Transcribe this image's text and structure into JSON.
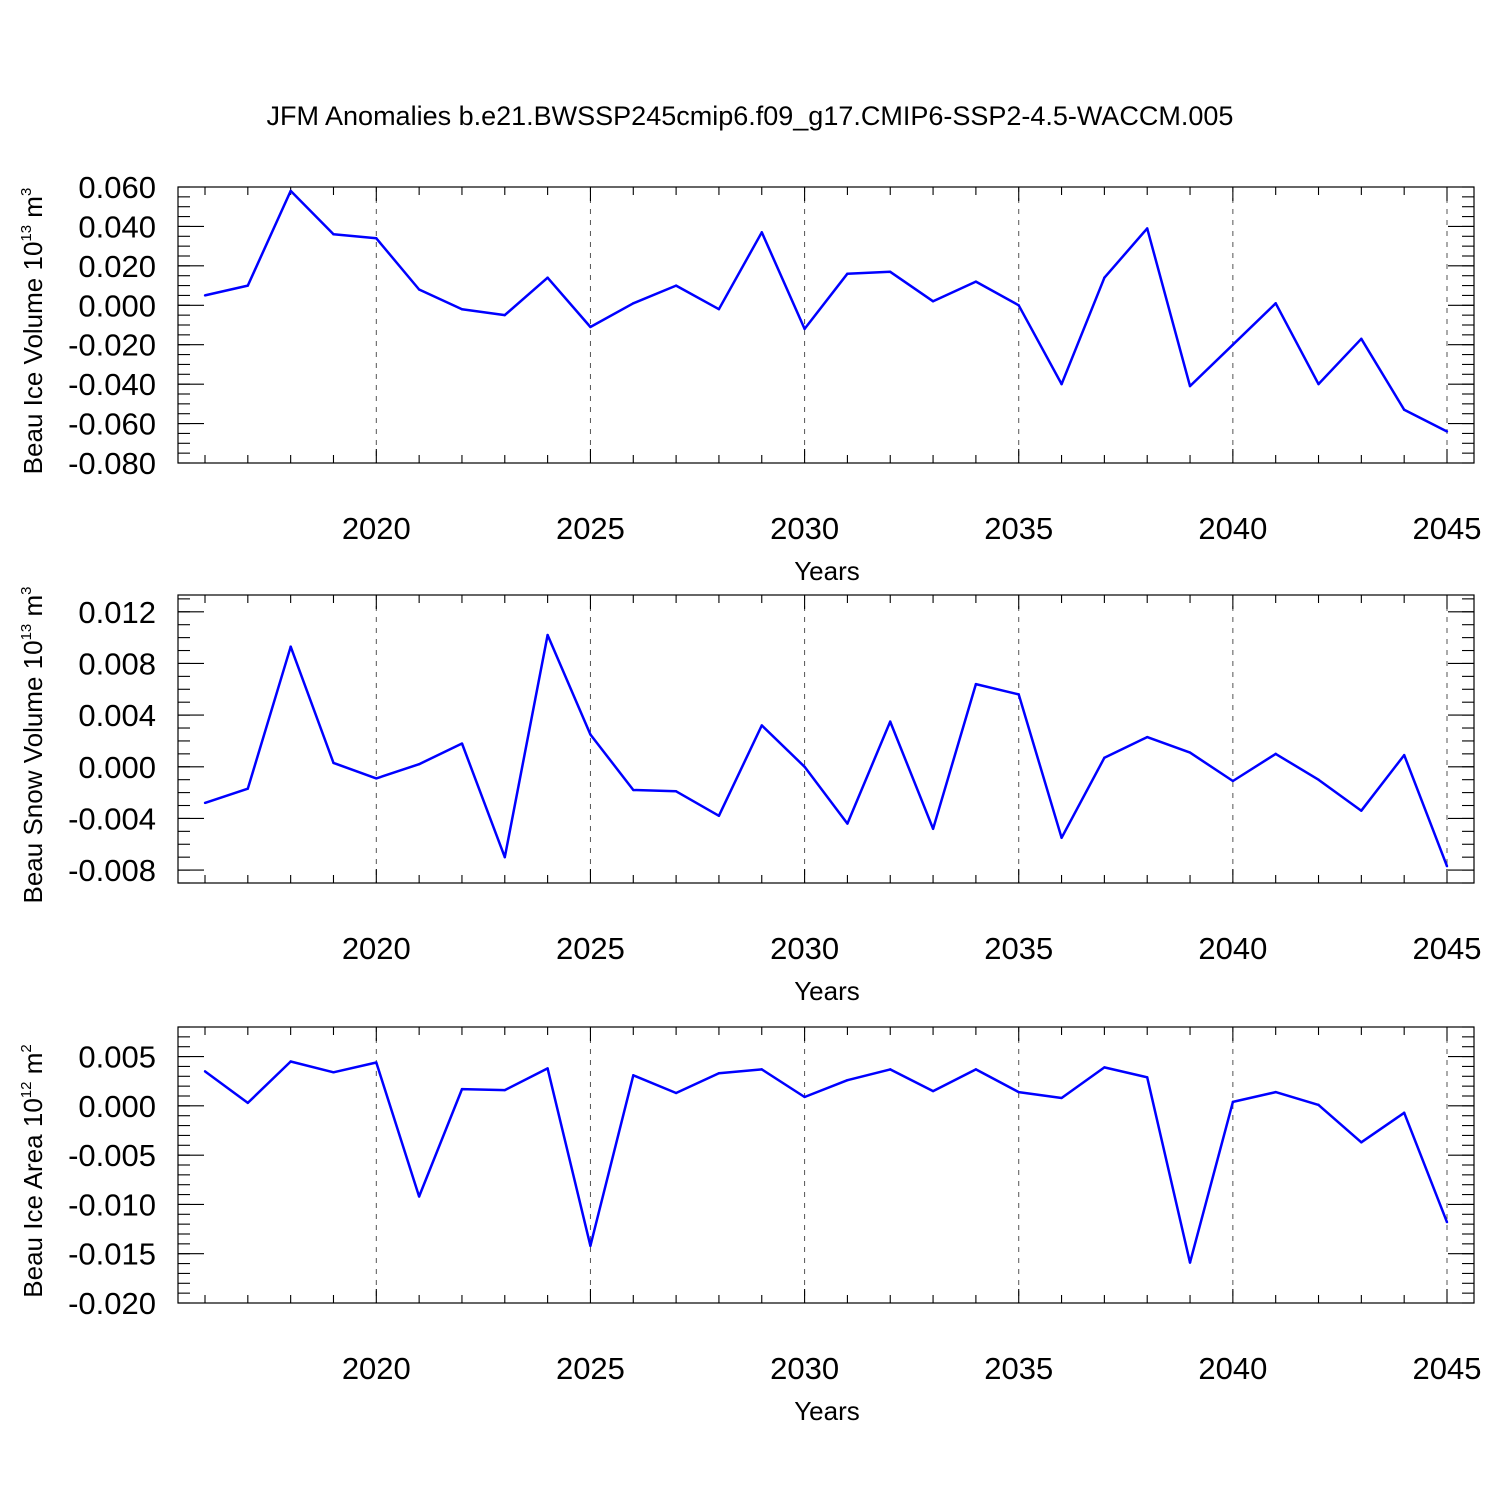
{
  "title": "JFM Anomalies b.e21.BWSSP245cmip6.f09_g17.CMIP6-SSP2-4.5-WACCM.005",
  "line_color": "#0000ff",
  "chart_data": [
    {
      "type": "line",
      "ylabel": "Beau Ice Volume 10",
      "ylabel_exp": "13",
      "ylabel_unit": "m",
      "ylabel_unit_exp": "3",
      "xlabel": "Years",
      "xlim": [
        2016,
        2045
      ],
      "ylim": [
        -0.08,
        0.06
      ],
      "xticks": [
        2020,
        2025,
        2030,
        2035,
        2040,
        2045
      ],
      "yticks": [
        -0.08,
        -0.06,
        -0.04,
        -0.02,
        0.0,
        0.02,
        0.04,
        0.06
      ],
      "ytick_labels": [
        "-0.080",
        "-0.060",
        "-0.040",
        "-0.020",
        "0.000",
        "0.020",
        "0.040",
        "0.060"
      ],
      "ymin_tick": 0.005,
      "x": [
        2016,
        2017,
        2018,
        2019,
        2020,
        2021,
        2022,
        2023,
        2024,
        2025,
        2026,
        2027,
        2028,
        2029,
        2030,
        2031,
        2032,
        2033,
        2034,
        2035,
        2036,
        2037,
        2038,
        2039,
        2040,
        2041,
        2042,
        2043,
        2044,
        2045
      ],
      "y": [
        0.005,
        0.01,
        0.058,
        0.036,
        0.034,
        0.008,
        -0.002,
        -0.005,
        0.014,
        -0.011,
        0.001,
        0.01,
        -0.002,
        0.037,
        -0.012,
        0.016,
        0.017,
        0.002,
        0.012,
        0.0,
        -0.04,
        0.014,
        0.039,
        -0.041,
        -0.02,
        0.001,
        -0.04,
        -0.017,
        -0.053,
        -0.064
      ]
    },
    {
      "type": "line",
      "ylabel": "Beau Snow Volume 10",
      "ylabel_exp": "13",
      "ylabel_unit": "m",
      "ylabel_unit_exp": "3",
      "xlabel": "Years",
      "xlim": [
        2016,
        2045
      ],
      "ylim": [
        -0.009,
        0.0133
      ],
      "xticks": [
        2020,
        2025,
        2030,
        2035,
        2040,
        2045
      ],
      "yticks": [
        -0.008,
        -0.004,
        0.0,
        0.004,
        0.008,
        0.012
      ],
      "ytick_labels": [
        "-0.008",
        "-0.004",
        "0.000",
        "0.004",
        "0.008",
        "0.012"
      ],
      "ymin_tick": 0.001,
      "x": [
        2016,
        2017,
        2018,
        2019,
        2020,
        2021,
        2022,
        2023,
        2024,
        2025,
        2026,
        2027,
        2028,
        2029,
        2030,
        2031,
        2032,
        2033,
        2034,
        2035,
        2036,
        2037,
        2038,
        2039,
        2040,
        2041,
        2042,
        2043,
        2044,
        2045
      ],
      "y": [
        -0.0028,
        -0.0017,
        0.0093,
        0.0003,
        -0.0009,
        0.0002,
        0.0018,
        -0.007,
        0.0102,
        0.0025,
        -0.0018,
        -0.0019,
        -0.0038,
        0.0032,
        0.0,
        -0.0044,
        0.0035,
        -0.0048,
        0.0064,
        0.0056,
        -0.0055,
        0.0007,
        0.0023,
        0.0011,
        -0.0011,
        0.001,
        -0.001,
        -0.0034,
        0.0009,
        -0.0077
      ]
    },
    {
      "type": "line",
      "ylabel": "Beau Ice Area 10",
      "ylabel_exp": "12",
      "ylabel_unit": "m",
      "ylabel_unit_exp": "2",
      "xlabel": "Years",
      "xlim": [
        2016,
        2045
      ],
      "ylim": [
        -0.02,
        0.008
      ],
      "xticks": [
        2020,
        2025,
        2030,
        2035,
        2040,
        2045
      ],
      "yticks": [
        -0.02,
        -0.015,
        -0.01,
        -0.005,
        0.0,
        0.005
      ],
      "ytick_labels": [
        "-0.020",
        "-0.015",
        "-0.010",
        "-0.005",
        "0.000",
        "0.005"
      ],
      "ymin_tick": 0.001,
      "x": [
        2016,
        2017,
        2018,
        2019,
        2020,
        2021,
        2022,
        2023,
        2024,
        2025,
        2026,
        2027,
        2028,
        2029,
        2030,
        2031,
        2032,
        2033,
        2034,
        2035,
        2036,
        2037,
        2038,
        2039,
        2040,
        2041,
        2042,
        2043,
        2044,
        2045
      ],
      "y": [
        0.0035,
        0.0003,
        0.0045,
        0.0034,
        0.0044,
        -0.0092,
        0.0017,
        0.0016,
        0.0038,
        -0.0142,
        0.0031,
        0.0013,
        0.0033,
        0.0037,
        0.0009,
        0.0026,
        0.0037,
        0.0015,
        0.0037,
        0.0014,
        0.0008,
        0.0039,
        0.0029,
        -0.0159,
        0.0004,
        0.0014,
        0.0001,
        -0.0037,
        -0.0007,
        -0.0118
      ]
    }
  ]
}
